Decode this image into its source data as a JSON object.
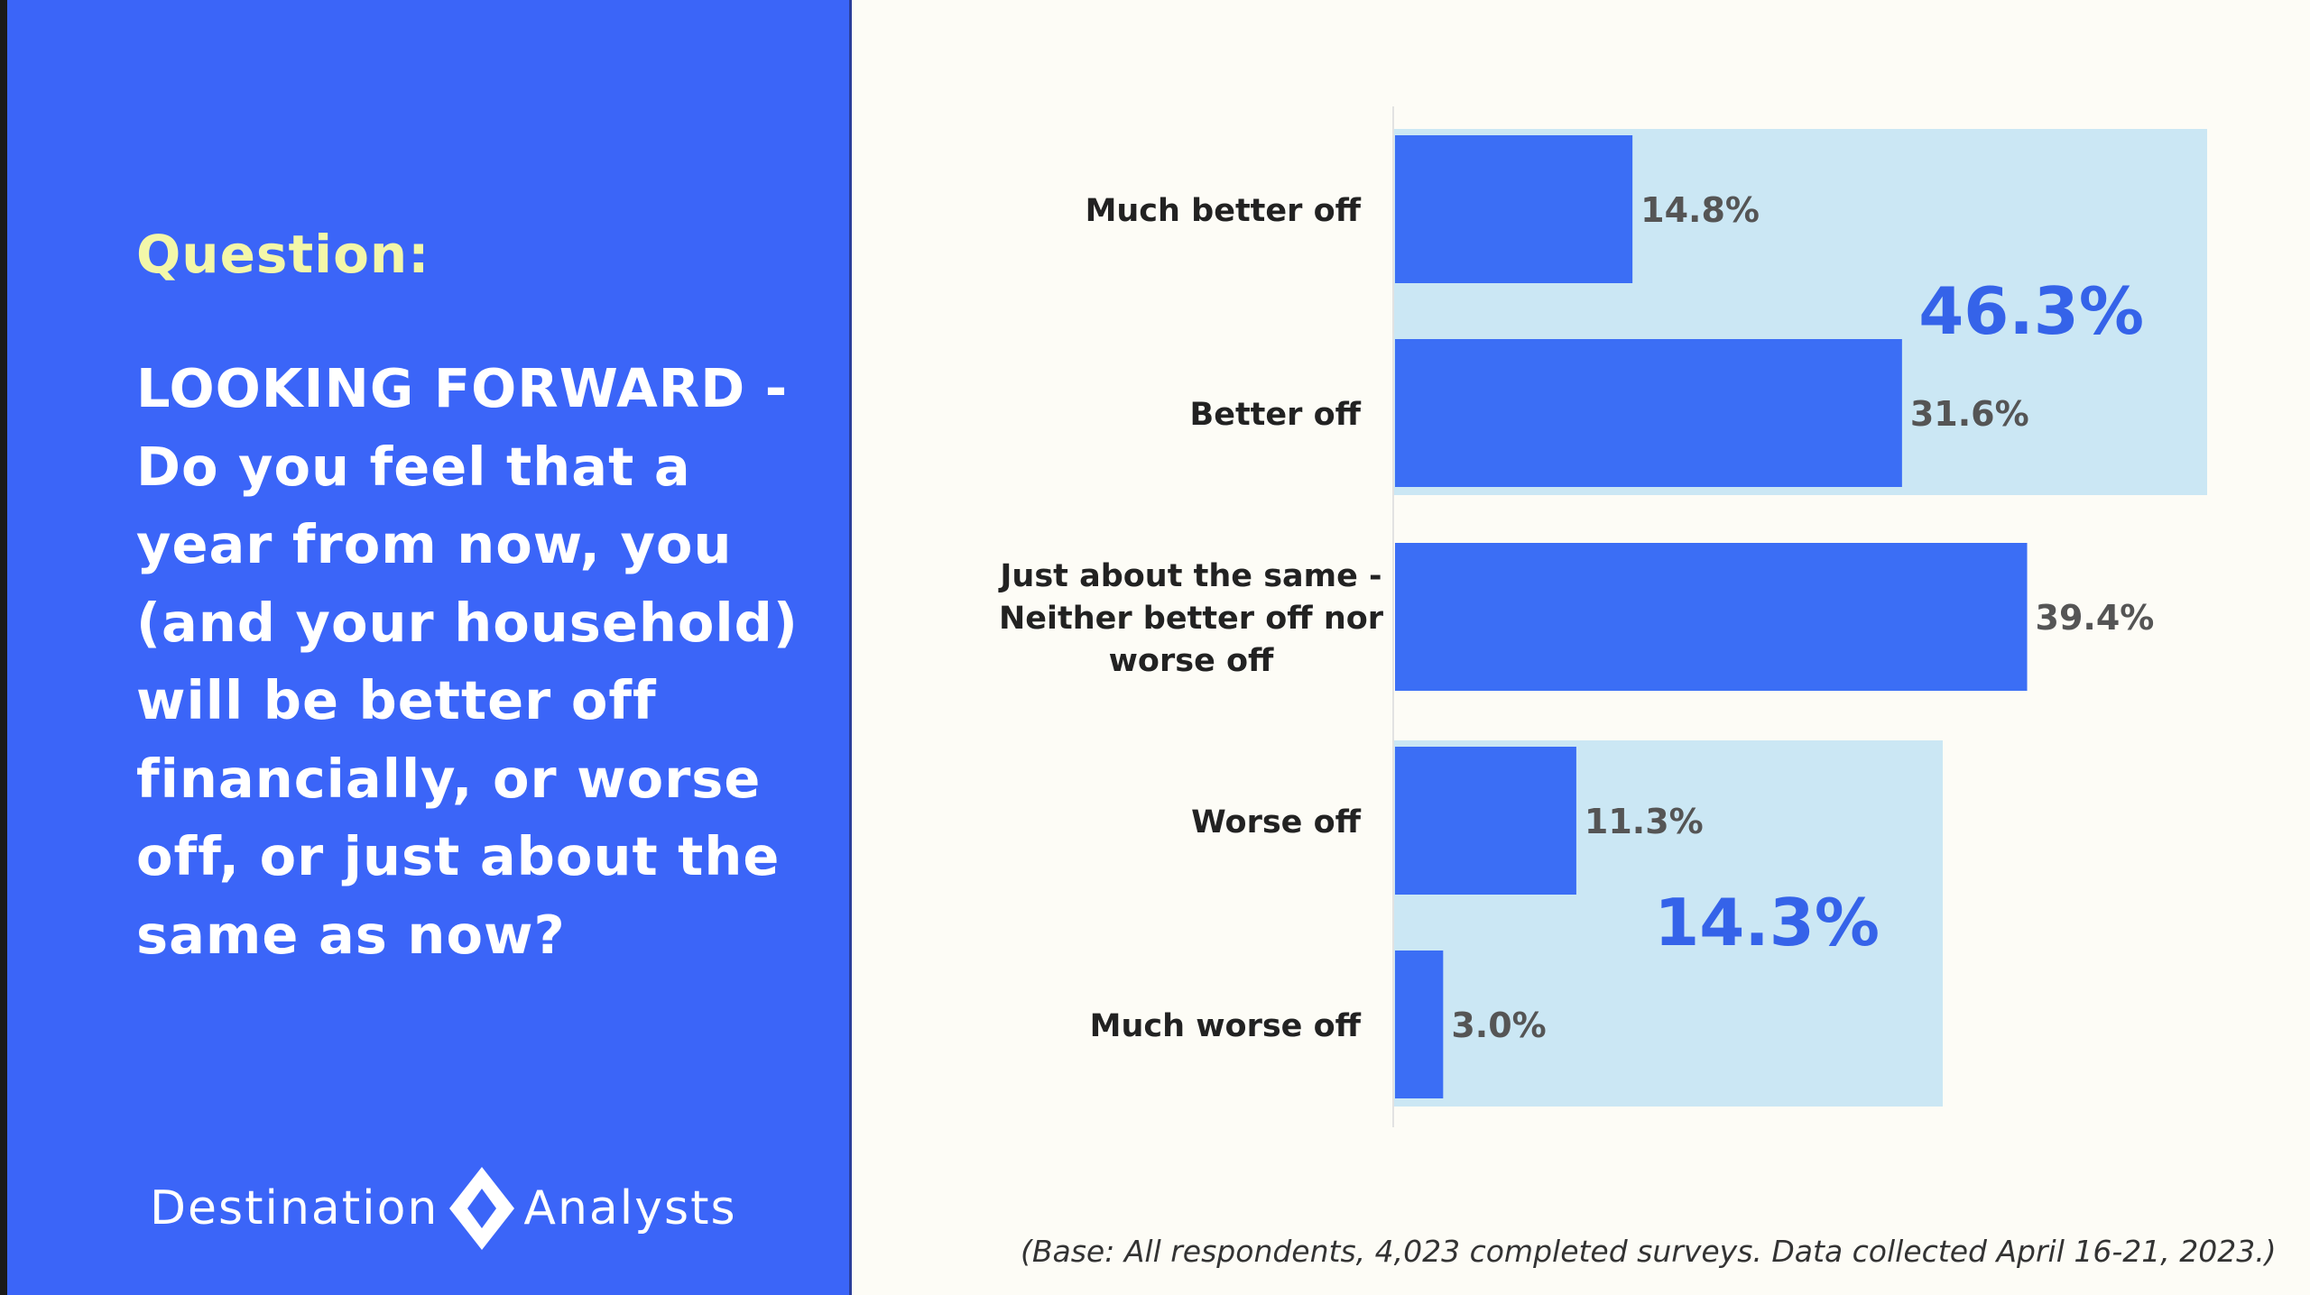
{
  "slide": {
    "question_label": "Question:",
    "question_text": "LOOKING FORWARD - Do you feel that a year from now, you (and your household) will be better off financially, or worse off, or just about the same as now?",
    "base_note": "(Base: All respondents, 4,023 completed surveys. Data collected April 16-21, 2023.)"
  },
  "logo": {
    "word1": "Destination",
    "word2": "Analysts",
    "icon": "diamond-star-logo-icon"
  },
  "colors": {
    "panel": "#3b65f8",
    "bar": "#3b6ef5",
    "group_highlight": "#cbe7f4",
    "group_label": "#3563e9",
    "bar_label": "#555555",
    "category_label": "#222222"
  },
  "chart_data": {
    "type": "bar",
    "orientation": "horizontal",
    "categories": [
      "Much better off",
      "Better off",
      "Just about the same - Neither better off nor worse off",
      "Worse off",
      "Much worse off"
    ],
    "category_label_lines": [
      [
        "Much better off"
      ],
      [
        "Better off"
      ],
      [
        "Just about the same -",
        "Neither better off nor",
        "worse off"
      ],
      [
        "Worse off"
      ],
      [
        "Much worse off"
      ]
    ],
    "values": [
      14.8,
      31.6,
      39.4,
      11.3,
      3.0
    ],
    "value_labels": [
      "14.8%",
      "31.6%",
      "39.4%",
      "11.3%",
      "3.0%"
    ],
    "xlim": [
      0,
      100
    ],
    "groups": [
      {
        "members": [
          0,
          1
        ],
        "total": 46.3,
        "label": "46.3%"
      },
      {
        "members": [
          3,
          4
        ],
        "total": 14.3,
        "label": "14.3%"
      }
    ],
    "grid": false,
    "legend": "none"
  }
}
